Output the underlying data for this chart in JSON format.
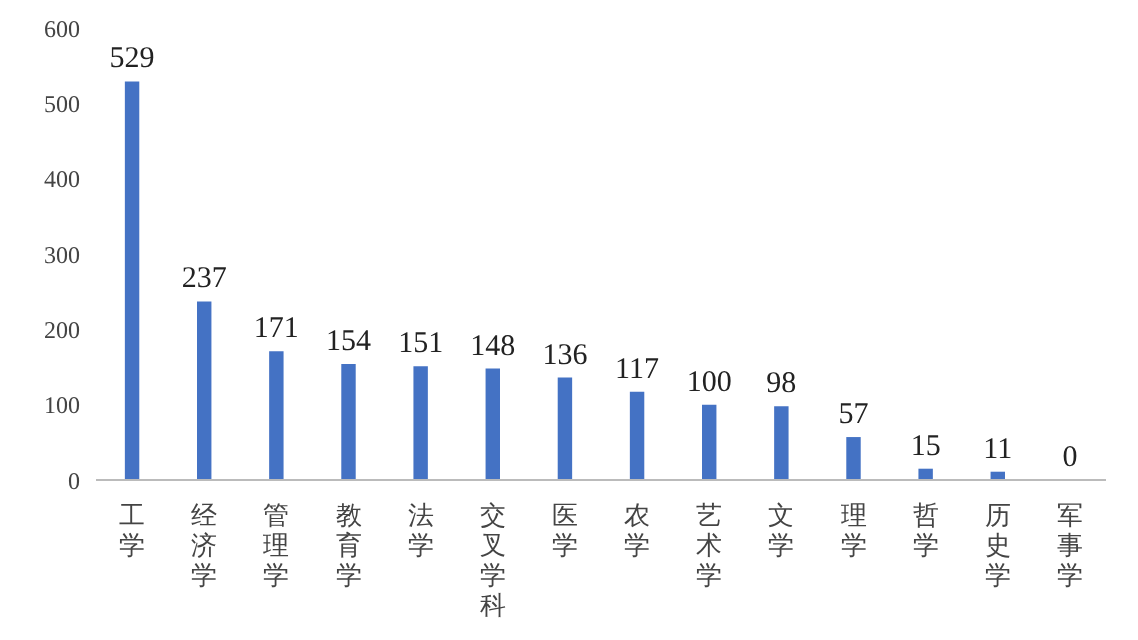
{
  "chart_data": {
    "type": "bar",
    "categories": [
      "工学",
      "经济学",
      "管理学",
      "教育学",
      "法学",
      "交叉学科",
      "医学",
      "农学",
      "艺术学",
      "文学",
      "理学",
      "哲学",
      "历史学",
      "军事学"
    ],
    "values": [
      529,
      237,
      171,
      154,
      151,
      148,
      136,
      117,
      100,
      98,
      57,
      15,
      11,
      0
    ],
    "color": "#4472c4",
    "ylim": [
      0,
      600
    ],
    "yticks": [
      0,
      100,
      200,
      300,
      400,
      500,
      600
    ],
    "grid": false,
    "legend": false,
    "data_labels": true
  }
}
